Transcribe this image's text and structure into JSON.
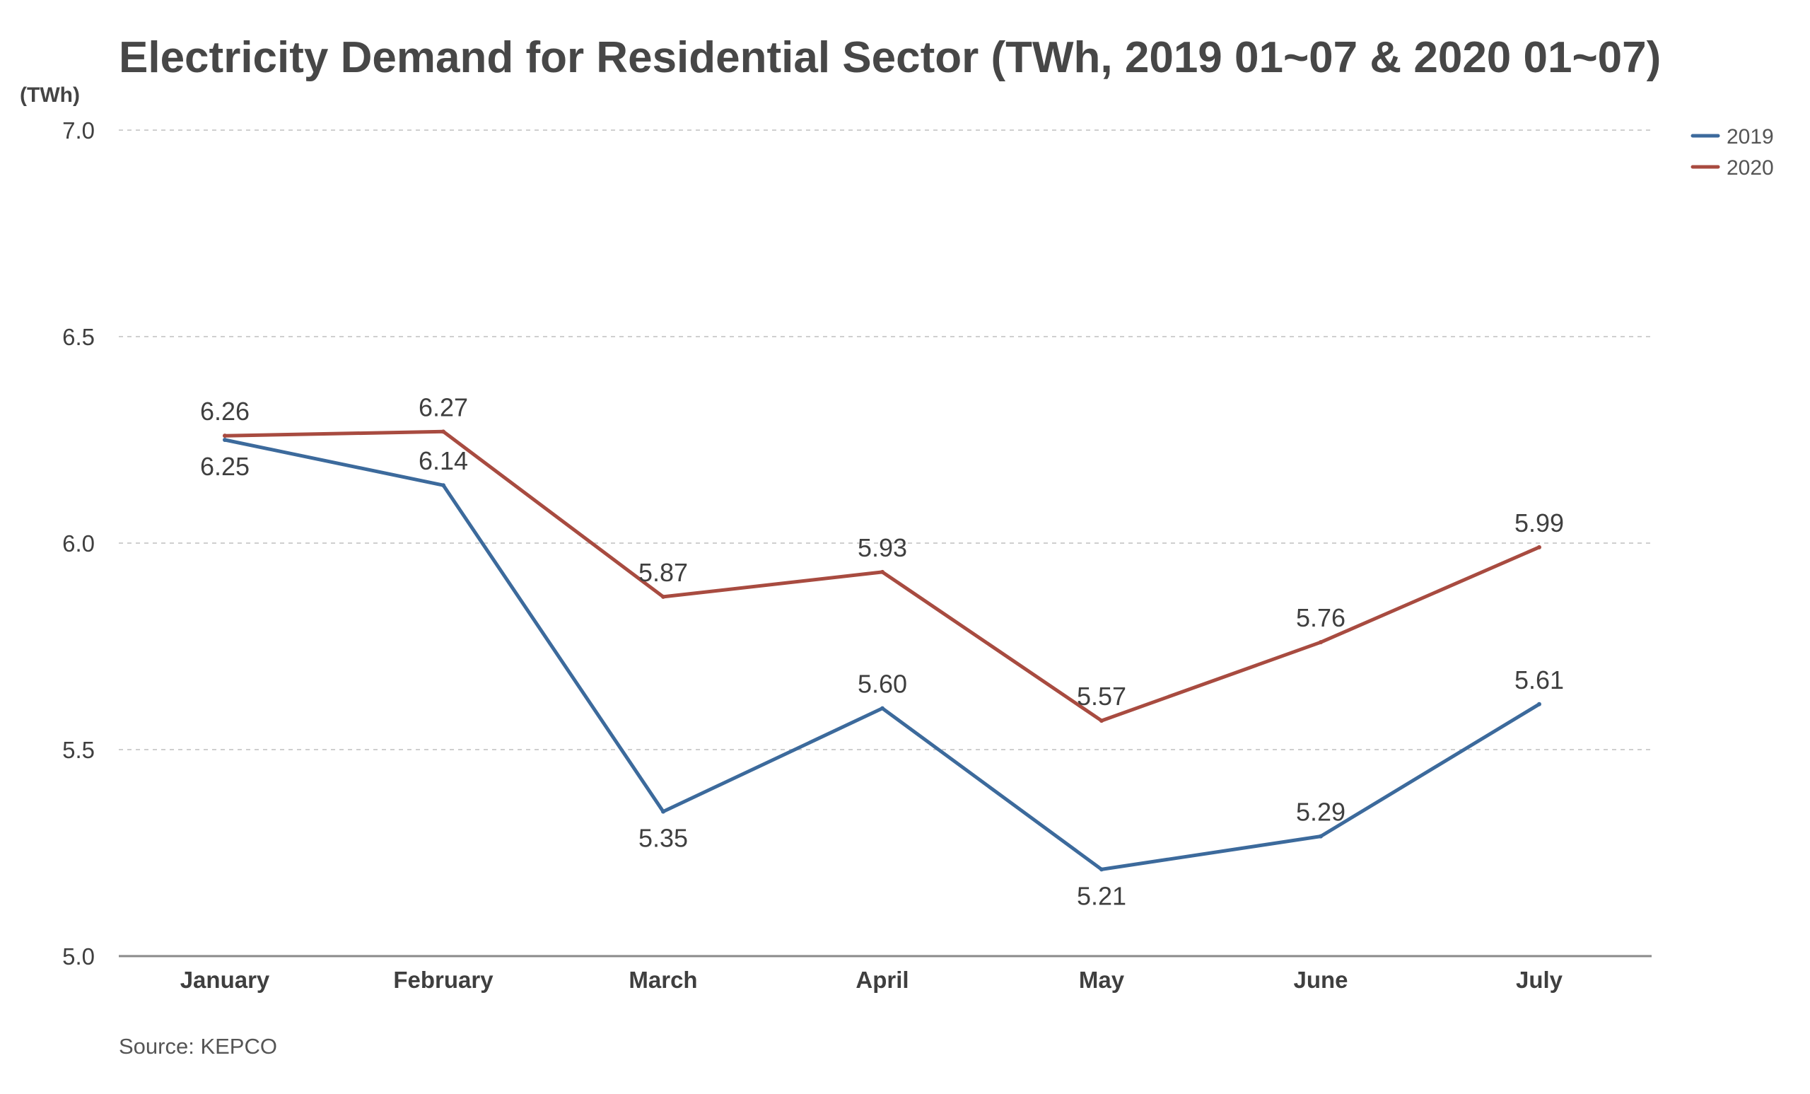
{
  "chart_data": {
    "type": "line",
    "title": "Electricity Demand for Residential Sector (TWh, 2019 01~07 & 2020 01~07)",
    "unit_label": "(TWh)",
    "xlabel": "",
    "ylabel": "",
    "categories": [
      "January",
      "February",
      "March",
      "April",
      "May",
      "June",
      "July"
    ],
    "ylim": [
      5.0,
      7.0
    ],
    "yticks": [
      "5.0",
      "5.5",
      "6.0",
      "6.5",
      "7.0"
    ],
    "grid": "horizontal-dashed",
    "legend_position": "top-right",
    "series": [
      {
        "name": "2019",
        "color": "#3c6a9c",
        "values": [
          6.25,
          6.14,
          5.35,
          5.6,
          5.21,
          5.29,
          5.61
        ],
        "labels": [
          "6.25",
          "6.14",
          "5.35",
          "5.60",
          "5.21",
          "5.29",
          "5.61"
        ]
      },
      {
        "name": "2020",
        "color": "#a84b40",
        "values": [
          6.26,
          6.27,
          5.87,
          5.93,
          5.57,
          5.76,
          5.99
        ],
        "labels": [
          "6.26",
          "6.27",
          "5.87",
          "5.93",
          "5.57",
          "5.76",
          "5.99"
        ]
      }
    ],
    "source": "Source: KEPCO"
  }
}
